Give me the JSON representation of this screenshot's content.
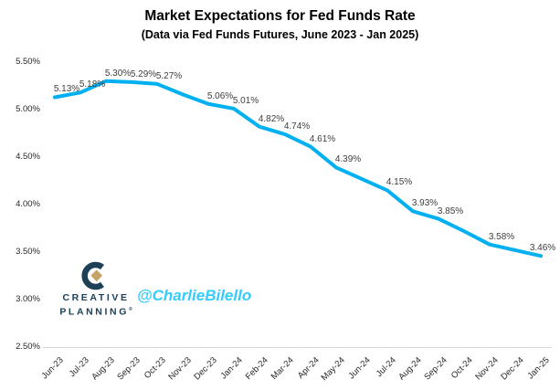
{
  "header": {
    "title": "Market Expectations for Fed Funds Rate",
    "subtitle": "(Data via Fed Funds Futures, June 2023 - Jan 2025)"
  },
  "chart_data": {
    "type": "line",
    "title": "Market Expectations for Fed Funds Rate",
    "subtitle": "(Data via Fed Funds Futures, June 2023 - Jan 2025)",
    "categories": [
      "Jun-23",
      "Jul-23",
      "Aug-23",
      "Sep-23",
      "Oct-23",
      "Nov-23",
      "Dec-23",
      "Jan-24",
      "Feb-24",
      "Mar-24",
      "Apr-24",
      "May-24",
      "Jun-24",
      "Jul-24",
      "Aug-24",
      "Sep-24",
      "Oct-24",
      "Nov-24",
      "Dec-24",
      "Jan-25"
    ],
    "values": [
      5.13,
      5.18,
      5.3,
      5.29,
      5.27,
      5.16,
      5.06,
      5.01,
      4.82,
      4.74,
      4.61,
      4.39,
      4.27,
      4.15,
      3.93,
      3.85,
      3.72,
      3.58,
      3.52,
      3.46
    ],
    "data_labels": [
      "5.13%",
      "5.18%",
      "5.30%",
      "5.29%",
      "5.27%",
      null,
      "5.06%",
      "5.01%",
      "4.82%",
      "4.74%",
      "4.61%",
      "4.39%",
      null,
      "4.15%",
      "3.93%",
      "3.85%",
      null,
      "3.58%",
      null,
      "3.46%"
    ],
    "xlabel": "",
    "ylabel": "",
    "ylim": [
      2.5,
      5.5
    ],
    "ytick_values": [
      5.5,
      5.0,
      4.5,
      4.0,
      3.5,
      3.0,
      2.5
    ],
    "ytick_labels": [
      "5.50%",
      "5.00%",
      "4.50%",
      "4.00%",
      "3.50%",
      "3.00%",
      "2.50%"
    ],
    "grid": false,
    "legend": false,
    "line_color": "#00B0F0"
  },
  "branding": {
    "logo_line1": "CREATIVE",
    "logo_line2": "PLANNING",
    "logo_registered_mark": "®",
    "logo_navy": "#1d4057",
    "logo_gold": "#c5a368",
    "handle": "@CharlieBilello",
    "handle_color": "#33ccff"
  }
}
